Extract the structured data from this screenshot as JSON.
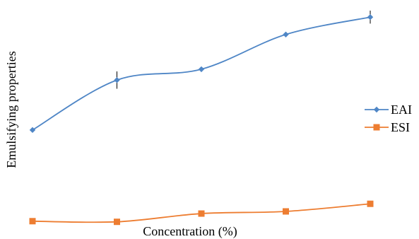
{
  "chart_data": {
    "type": "line",
    "title": "",
    "xlabel": "Concentration (%)",
    "ylabel": "Emulsifying properties",
    "x": [
      1,
      2,
      3,
      4,
      5
    ],
    "ylim": [
      0,
      100
    ],
    "grid": false,
    "legend_position": "right",
    "series": [
      {
        "name": "EAI",
        "values": [
          45,
          68,
          73,
          89,
          97
        ],
        "error": [
          0,
          4,
          0,
          0,
          3
        ],
        "color": "#4f86c6",
        "marker": "diamond"
      },
      {
        "name": "ESI",
        "values": [
          3,
          2.7,
          6.5,
          7.5,
          11
        ],
        "error": [
          0,
          0,
          0,
          0,
          0
        ],
        "color": "#ed7d31",
        "marker": "square"
      }
    ]
  }
}
